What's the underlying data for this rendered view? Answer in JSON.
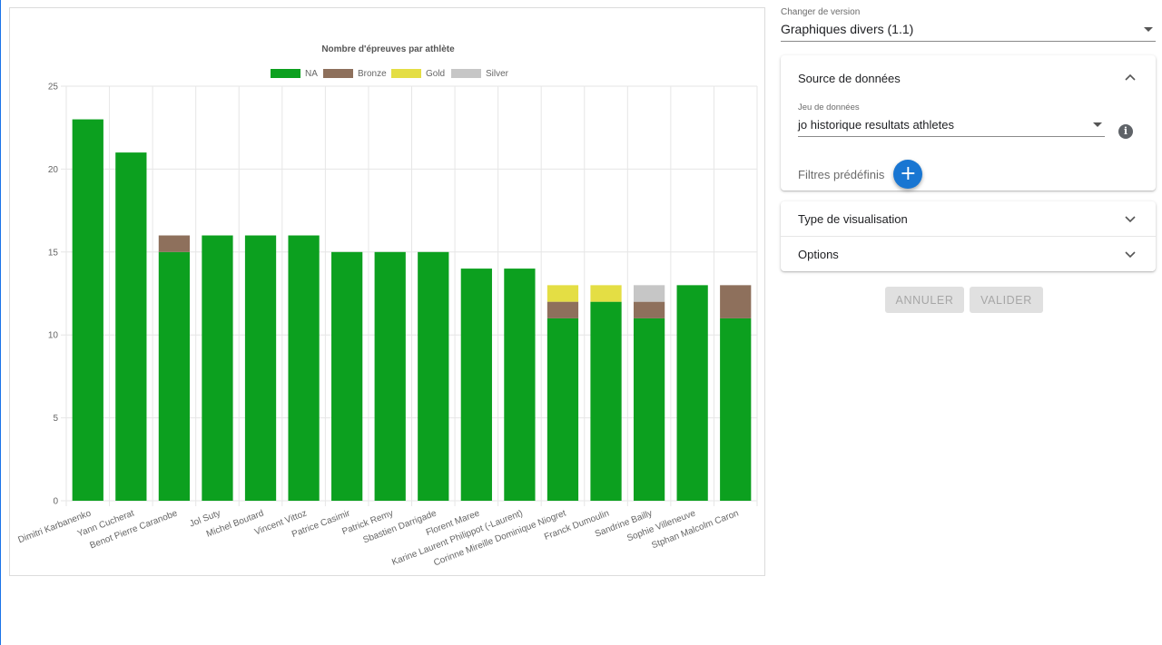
{
  "chart_data": {
    "type": "bar",
    "stacked": true,
    "title": "Nombre d'épreuves par athlète",
    "categories": [
      "Dimitri Karbanenko",
      "Yann Cucherat",
      "Benot Pierre Caranobe",
      "Jol Suty",
      "Michel Boutard",
      "Vincent Vittoz",
      "Patrice Casimir",
      "Patrick Remy",
      "Sbastien Darrigade",
      "Florent Maree",
      "Karine Laurent Philippot (-Laurent)",
      "Corinne Mireille Dominique Niogret",
      "Franck Dumoulin",
      "Sandrine Bailly",
      "Sophie Villeneuve",
      "Stphan Malcolm Caron"
    ],
    "series": [
      {
        "name": "NA",
        "color": "#0ca01f",
        "values": [
          23,
          21,
          15,
          16,
          16,
          16,
          15,
          15,
          15,
          14,
          14,
          11,
          12,
          11,
          13,
          11
        ]
      },
      {
        "name": "Bronze",
        "color": "#8e705c",
        "values": [
          0,
          0,
          1,
          0,
          0,
          0,
          0,
          0,
          0,
          0,
          0,
          1,
          0,
          1,
          0,
          2
        ]
      },
      {
        "name": "Gold",
        "color": "#e4de44",
        "values": [
          0,
          0,
          0,
          0,
          0,
          0,
          0,
          0,
          0,
          0,
          0,
          1,
          1,
          0,
          0,
          0
        ]
      },
      {
        "name": "Silver",
        "color": "#c6c6c6",
        "values": [
          0,
          0,
          0,
          0,
          0,
          0,
          0,
          0,
          0,
          0,
          0,
          0,
          0,
          1,
          0,
          0
        ]
      }
    ],
    "ylim": [
      0,
      25
    ],
    "yticks": [
      0,
      5,
      10,
      15,
      20,
      25
    ],
    "grid": true,
    "legend": "top-center"
  },
  "version": {
    "label": "Changer de version",
    "value": "Graphiques divers (1.1)"
  },
  "source": {
    "title": "Source de données",
    "dataset_label": "Jeu de données",
    "dataset_value": "jo historique resultats athletes",
    "filters_label": "Filtres prédéfinis",
    "info_glyph": "i",
    "add_glyph": "+"
  },
  "visualisation": {
    "title": "Type de visualisation"
  },
  "options": {
    "title": "Options"
  },
  "actions": {
    "cancel": "ANNULER",
    "submit": "VALIDER"
  }
}
